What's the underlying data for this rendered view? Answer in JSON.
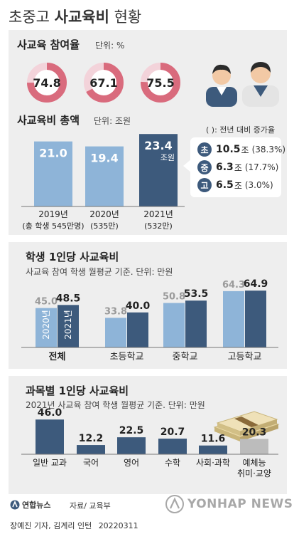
{
  "header": {
    "title_prefix": "초중고 ",
    "title_bold": "사교육비",
    "title_suffix": " 현황"
  },
  "participation": {
    "title": "사교육 참여율",
    "unit": "단위: %",
    "values": [
      "74.8",
      "67.1",
      "75.5"
    ]
  },
  "total": {
    "title": "사교육비 총액",
    "unit": "단위: 조원",
    "values": [
      "21.0",
      "19.4",
      "23.4"
    ],
    "unit_inline": "조원",
    "year_labels": [
      "2019년",
      "2020년",
      "2021년"
    ],
    "student_labels": [
      "(총 학생 545만명)",
      "(535만)",
      "(532만)"
    ]
  },
  "callout": {
    "note": "( ): 전년 대비 증가율",
    "rows": [
      {
        "badge": "초",
        "value": "10.5",
        "unit": "조",
        "pct": "(38.3%)"
      },
      {
        "badge": "중",
        "value": "6.3",
        "unit": "조",
        "pct": "(17.7%)"
      },
      {
        "badge": "고",
        "value": "6.5",
        "unit": "조",
        "pct": "(3.0%)"
      }
    ]
  },
  "per_student": {
    "title": "학생 1인당 사교육비",
    "subtitle": "사교육 참여 학생 월평균 기준. 단위: 만원",
    "bar_labels": [
      "2020년",
      "2021년"
    ]
  },
  "per_subject": {
    "title": "과목별 1인당 사교육비",
    "subtitle": "2021년 사교육 참여 학생 월평균 기준. 단위: 만원"
  },
  "footer": {
    "logo": "연합뉴스",
    "source": "자료/ 교육부",
    "credit": "장예진 기자, 김계리 인턴",
    "date": "20220311",
    "watermark": "YONHAP NEWS"
  },
  "colors": {
    "ring": "#d96b7d",
    "bar_dark": "#3d5a7c",
    "bar_light": "#8eb4d8",
    "bar_grey": "#bcbcbc",
    "panel": "#eeeeee"
  },
  "chart_data": [
    {
      "type": "pie",
      "title": "사교육 참여율",
      "categories": [
        "2019년",
        "2020년",
        "2021년"
      ],
      "values": [
        74.8,
        67.1,
        75.5
      ]
    },
    {
      "type": "bar",
      "title": "사교육비 총액",
      "categories": [
        "2019년",
        "2020년",
        "2021년"
      ],
      "values": [
        21.0,
        19.4,
        23.4
      ]
    },
    {
      "type": "bar",
      "title": "학생 1인당 사교육비",
      "categories": [
        "전체",
        "초등학교",
        "중학교",
        "고등학교"
      ],
      "series": [
        {
          "name": "2020년",
          "values": [
            45.0,
            33.8,
            50.8,
            64.3
          ]
        },
        {
          "name": "2021년",
          "values": [
            48.5,
            40.0,
            53.5,
            64.9
          ]
        }
      ]
    },
    {
      "type": "bar",
      "title": "과목별 1인당 사교육비",
      "categories": [
        "일반 교과",
        "국어",
        "영어",
        "수학",
        "사회·과학",
        "예체능 취미·교양"
      ],
      "values": [
        46.0,
        12.2,
        22.5,
        20.7,
        11.6,
        20.3
      ]
    }
  ]
}
